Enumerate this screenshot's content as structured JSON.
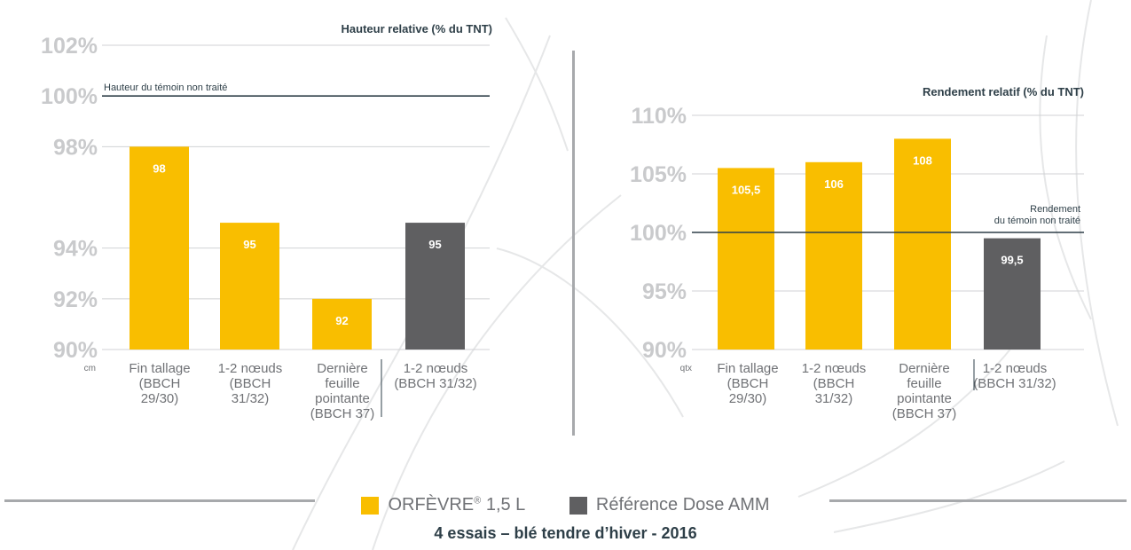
{
  "colors": {
    "orfevre": "#f9be00",
    "reference": "#5f5f61",
    "ref_line": "#2e3f48",
    "grid": "#d0d2d4",
    "tick_label": "#c9cacc",
    "category_label": "#707276",
    "title": "#2e3f48"
  },
  "chart_data": [
    {
      "type": "bar",
      "title": "Hauteur relative (% du TNT)",
      "unit_label": "cm",
      "ylim": [
        90,
        102
      ],
      "yticks": [
        90,
        92,
        94,
        98,
        100,
        102
      ],
      "ytick_labels": [
        "90%",
        "92%",
        "94%",
        "98%",
        "100%",
        "102%"
      ],
      "grid": true,
      "categories": [
        [
          "Fin tallage",
          "(BBCH",
          "29/30)"
        ],
        [
          "1-2 nœuds",
          "(BBCH",
          "31/32)"
        ],
        [
          "Dernière",
          "feuille",
          "pointante",
          "(BBCH 37)"
        ],
        [
          "1-2 nœuds",
          "(BBCH 31/32)"
        ]
      ],
      "values": [
        98,
        95,
        92,
        95
      ],
      "value_labels": [
        "98",
        "95",
        "92",
        "95"
      ],
      "series_index": [
        0,
        0,
        0,
        1
      ],
      "reference_line": {
        "y": 100,
        "label": [
          "Hauteur du témoin non traité"
        ]
      }
    },
    {
      "type": "bar",
      "title": "Rendement relatif (% du TNT)",
      "unit_label": "qtx",
      "ylim": [
        90,
        110
      ],
      "yticks": [
        90,
        95,
        100,
        105,
        110
      ],
      "ytick_labels": [
        "90%",
        "95%",
        "100%",
        "105%",
        "110%"
      ],
      "grid": true,
      "categories": [
        [
          "Fin tallage",
          "(BBCH",
          "29/30)"
        ],
        [
          "1-2 nœuds",
          "(BBCH",
          "31/32)"
        ],
        [
          "Dernière",
          "feuille",
          "pointante",
          "(BBCH 37)"
        ],
        [
          "1-2 nœuds",
          "(BBCH 31/32)"
        ]
      ],
      "values": [
        105.5,
        106,
        108,
        99.5
      ],
      "value_labels": [
        "105,5",
        "106",
        "108",
        "99,5"
      ],
      "series_index": [
        0,
        0,
        0,
        1
      ],
      "reference_line": {
        "y": 100,
        "label": [
          "Rendement",
          "du témoin non traité"
        ]
      }
    }
  ],
  "legend": {
    "items": [
      {
        "name": "ORFÈVRE",
        "superscript": "®",
        "suffix": " 1,5 L",
        "color": "#f9be00"
      },
      {
        "name": "Référence Dose AMM",
        "superscript": "",
        "suffix": "",
        "color": "#5f5f61"
      }
    ]
  },
  "caption": "4 essais – blé tendre d’hiver - 2016"
}
